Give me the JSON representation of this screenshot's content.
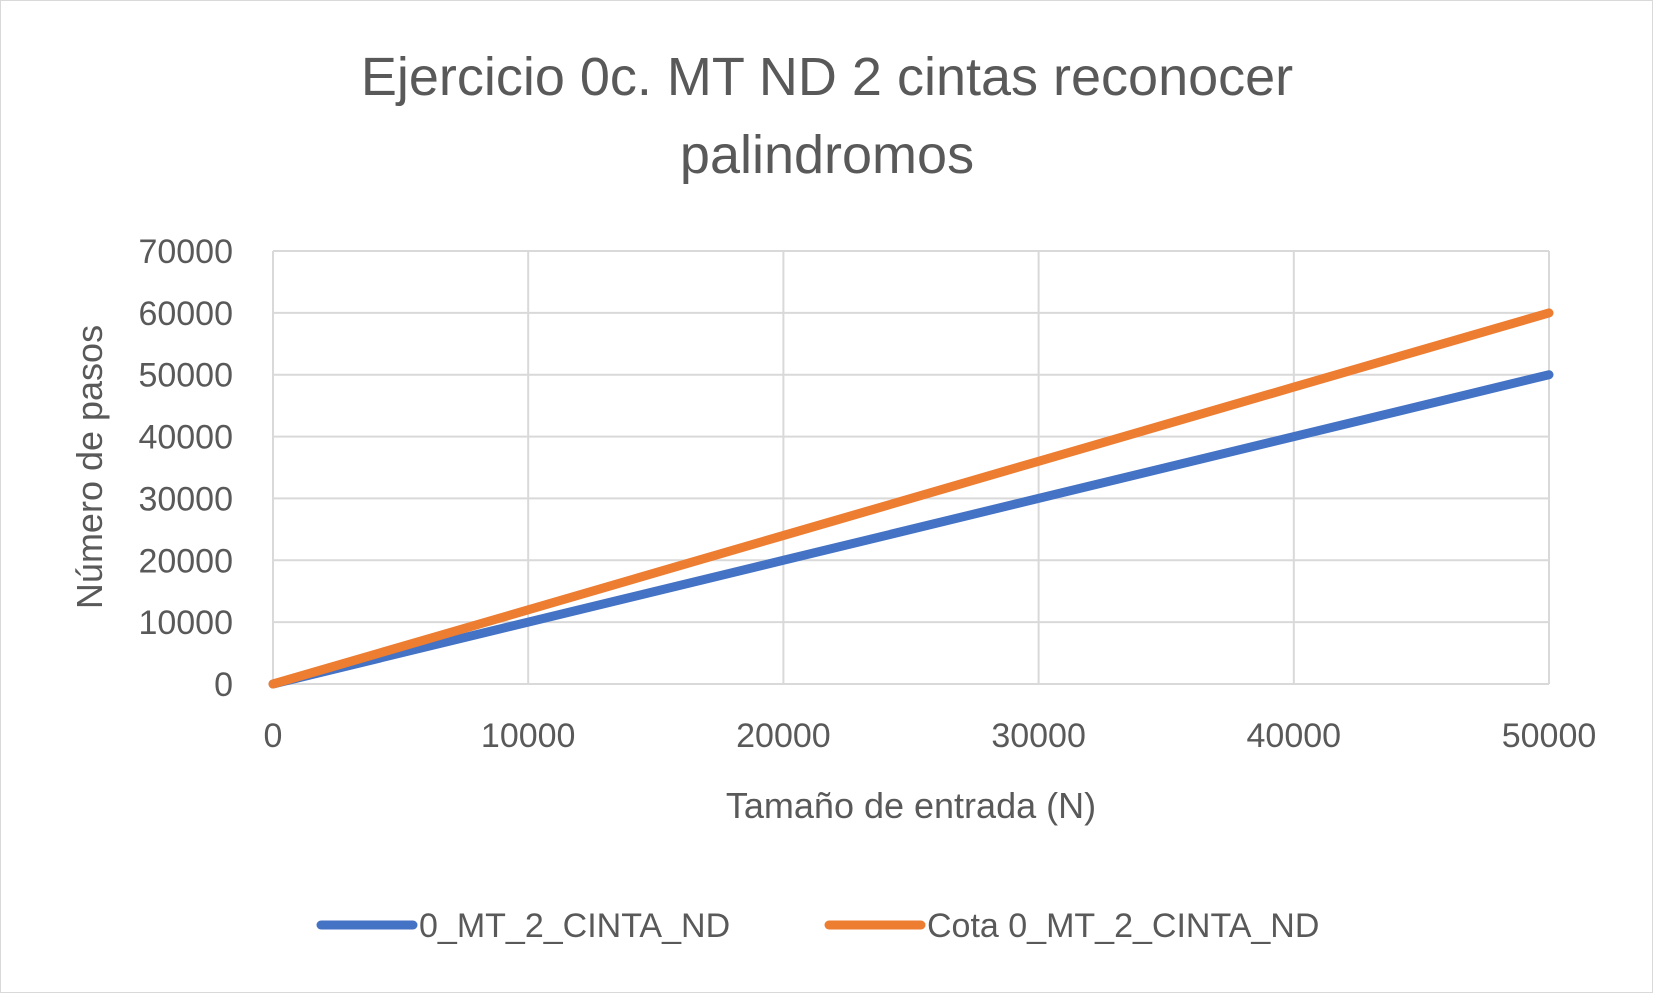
{
  "chart_data": {
    "type": "line",
    "title": [
      "Ejercicio 0c. MT ND 2 cintas reconocer",
      "palindromos"
    ],
    "xlabel": "Tamaño de entrada (N)",
    "ylabel": "Número de pasos",
    "xlim": [
      0,
      50000
    ],
    "ylim": [
      0,
      70000
    ],
    "xticks": [
      "0",
      "10000",
      "20000",
      "30000",
      "40000",
      "50000"
    ],
    "yticks": [
      "0",
      "10000",
      "20000",
      "30000",
      "40000",
      "50000",
      "60000",
      "70000"
    ],
    "grid": true,
    "legend_position": "bottom",
    "x": [
      0,
      10000,
      20000,
      30000,
      40000,
      50000
    ],
    "series": [
      {
        "name": "0_MT_2_CINTA_ND",
        "color": "#4472C4",
        "values": [
          0,
          10000,
          20000,
          30000,
          40000,
          50000
        ]
      },
      {
        "name": "Cota 0_MT_2_CINTA_ND",
        "color": "#ED7D31",
        "values": [
          0,
          12000,
          24000,
          36000,
          48000,
          60000
        ]
      }
    ]
  }
}
